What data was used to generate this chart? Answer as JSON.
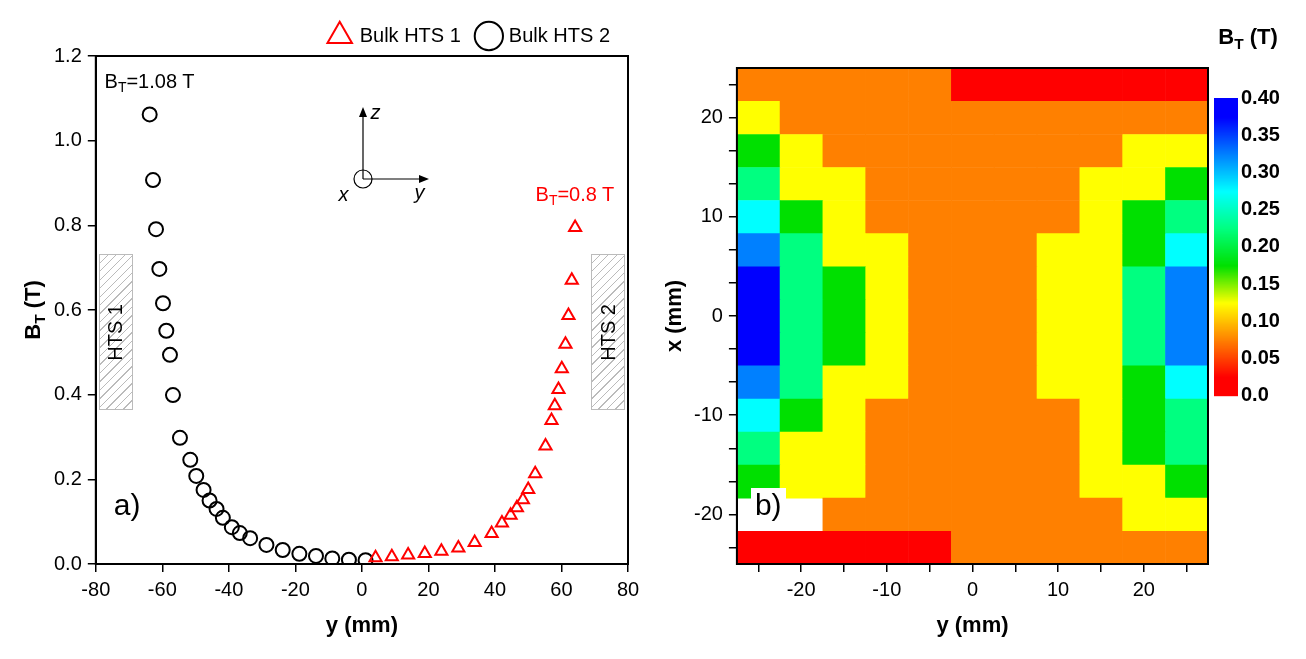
{
  "chart_data": [
    {
      "type": "scatter",
      "xlabel": "y (mm)",
      "ylabel": "B$_{T}$ (T)",
      "xlim": [
        -80,
        80
      ],
      "xticks": [
        -80,
        -60,
        -40,
        -20,
        0,
        20,
        40,
        60,
        80
      ],
      "ylim": [
        0,
        1.2
      ],
      "yticks": [
        {
          "value": 0,
          "label": "0.0"
        },
        0.2,
        0.4,
        0.6,
        0.8,
        {
          "value": 1,
          "label": "1.0"
        },
        1.2
      ],
      "legend": "top right",
      "series": [
        {
          "name": "Bulk HTS 1",
          "color": "#ff0000",
          "marker": "triangle",
          "x": [
            64.1,
            63.1,
            62.1,
            61.2,
            60.1,
            59.1,
            58.0,
            57.0,
            55.2,
            52.1,
            50.0,
            48.4,
            46.6,
            44.7,
            42.1,
            39.0,
            33.9,
            29.0,
            23.9,
            18.9,
            13.9,
            9.0,
            4.1
          ],
          "values": [
            0.795,
            0.67,
            0.587,
            0.519,
            0.461,
            0.412,
            0.374,
            0.339,
            0.279,
            0.213,
            0.176,
            0.152,
            0.133,
            0.115,
            0.097,
            0.072,
            0.051,
            0.038,
            0.03,
            0.025,
            0.021,
            0.017,
            0.015
          ]
        },
        {
          "name": "Bulk HTS 2",
          "color": "#000000",
          "marker": "circle",
          "x": [
            -63.8,
            -62.8,
            -61.9,
            -60.9,
            -59.8,
            -58.8,
            -57.7,
            -56.8,
            -54.7,
            -51.6,
            -49.8,
            -47.6,
            -45.8,
            -43.7,
            -41.8,
            -39.1,
            -36.7,
            -33.6,
            -28.7,
            -23.8,
            -18.8,
            -13.8,
            -8.9,
            -3.9,
            1.1
          ],
          "values": [
            1.062,
            0.907,
            0.791,
            0.697,
            0.616,
            0.551,
            0.494,
            0.399,
            0.298,
            0.246,
            0.208,
            0.175,
            0.15,
            0.13,
            0.109,
            0.087,
            0.073,
            0.061,
            0.045,
            0.033,
            0.024,
            0.019,
            0.013,
            0.01,
            0.009
          ]
        }
      ],
      "annotations": [
        {
          "text": "B$_{T}$=1.08 T",
          "x": -63.8,
          "y": 1.062
        },
        {
          "text": "B$_{T}$=0.8 T",
          "x": 64.1,
          "y": 0.795
        },
        "a)",
        "z",
        "y",
        "x",
        "HTS 1",
        "HTS 2"
      ]
    },
    {
      "type": "heatmap",
      "xlabel": "y (mm)",
      "ylabel": "x (mm)",
      "clabel": "B$_{T}$ (T)",
      "clim": [
        0,
        0.4
      ],
      "cticks": [
        {
          "value": 0,
          "label": "0.0"
        },
        0.05,
        {
          "value": 0.1,
          "label": "0.10"
        },
        0.15,
        {
          "value": 0.2,
          "label": "0.20"
        },
        0.25,
        {
          "value": 0.3,
          "label": "0.30"
        },
        0.35,
        {
          "value": 0.4,
          "label": "0.40"
        }
      ],
      "colors": [
        "#ff0000",
        "#ff8000",
        "#ffff00",
        "#00e000",
        "#00ff80",
        "#00ffff",
        "#0080ff",
        "#0000ff"
      ],
      "categories": [
        null,
        "-20",
        null,
        "-10",
        null,
        "0",
        null,
        "10",
        null,
        "20",
        null
      ],
      "y_categories": [
        null,
        "20",
        null,
        null,
        "10",
        null,
        null,
        "0",
        null,
        null,
        "-10",
        null,
        null,
        "-20",
        null
      ],
      "cells": [
        [
          0.075,
          0.075,
          0.075,
          0.075,
          0.075,
          0.025,
          0.025,
          0.025,
          0.025,
          0.025,
          0.025
        ],
        [
          0.125,
          0.075,
          0.075,
          0.075,
          0.075,
          0.075,
          0.075,
          0.075,
          0.075,
          0.075,
          0.075
        ],
        [
          0.175,
          0.125,
          0.075,
          0.075,
          0.075,
          0.075,
          0.075,
          0.075,
          0.075,
          0.125,
          0.125
        ],
        [
          0.225,
          0.125,
          0.125,
          0.075,
          0.075,
          0.075,
          0.075,
          0.075,
          0.125,
          0.125,
          0.175
        ],
        [
          0.275,
          0.175,
          0.125,
          0.075,
          0.075,
          0.075,
          0.075,
          0.075,
          0.125,
          0.175,
          0.225
        ],
        [
          0.325,
          0.225,
          0.125,
          0.125,
          0.075,
          0.075,
          0.075,
          0.125,
          0.125,
          0.175,
          0.275
        ],
        [
          0.375,
          0.225,
          0.175,
          0.125,
          0.075,
          0.075,
          0.075,
          0.125,
          0.125,
          0.225,
          0.325
        ],
        [
          0.375,
          0.225,
          0.175,
          0.125,
          0.075,
          0.075,
          0.075,
          0.125,
          0.125,
          0.225,
          0.325
        ],
        [
          0.375,
          0.225,
          0.175,
          0.125,
          0.075,
          0.075,
          0.075,
          0.125,
          0.125,
          0.225,
          0.325
        ],
        [
          0.325,
          0.225,
          0.125,
          0.125,
          0.075,
          0.075,
          0.075,
          0.125,
          0.125,
          0.175,
          0.275
        ],
        [
          0.275,
          0.175,
          0.125,
          0.075,
          0.075,
          0.075,
          0.075,
          0.075,
          0.125,
          0.175,
          0.225
        ],
        [
          0.225,
          0.125,
          0.125,
          0.075,
          0.075,
          0.075,
          0.075,
          0.075,
          0.125,
          0.175,
          0.225
        ],
        [
          0.175,
          0.125,
          0.125,
          0.075,
          0.075,
          0.075,
          0.075,
          0.075,
          0.125,
          0.125,
          0.175
        ],
        [
          null,
          null,
          0.075,
          0.075,
          0.075,
          0.075,
          0.075,
          0.075,
          0.075,
          0.125,
          0.125
        ],
        [
          0.025,
          0.025,
          0.025,
          0.025,
          0.025,
          0.075,
          0.075,
          0.075,
          0.075,
          0.075,
          0.075
        ]
      ],
      "annotations": [
        "b)"
      ]
    }
  ]
}
